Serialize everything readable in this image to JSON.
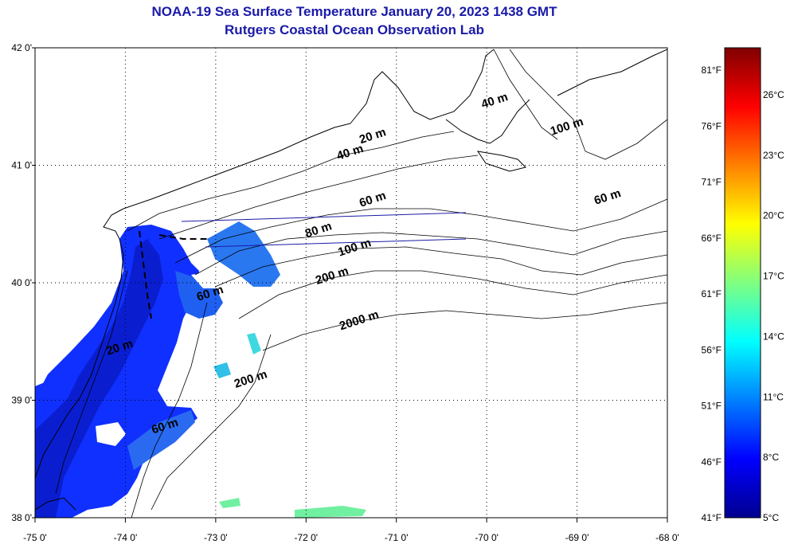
{
  "header": {
    "title": "NOAA-19 Sea Surface Temperature January 20, 2023 1438 GMT",
    "subtitle": "Rutgers Coastal Ocean Observation Lab"
  },
  "map": {
    "lon_min": -75,
    "lon_max": -68,
    "lat_min": 38,
    "lat_max": 42,
    "lat_labels": [
      "42 0'",
      "41 0'",
      "40 0'",
      "39 0'",
      "38 0'"
    ],
    "lon_labels": [
      "-75 0'",
      "-74 0'",
      "-73 0'",
      "-72 0'",
      "-71 0'",
      "-70 0'",
      "-69 0'",
      "-68 0'"
    ],
    "grid": "dotted",
    "contour_labels": [
      {
        "text": "20 m",
        "lon": -71.25,
        "lat": 41.22
      },
      {
        "text": "40 m",
        "lon": -71.5,
        "lat": 41.08
      },
      {
        "text": "40 m",
        "lon": -69.9,
        "lat": 41.52
      },
      {
        "text": "100 m",
        "lon": -69.1,
        "lat": 41.3
      },
      {
        "text": "60 m",
        "lon": -71.25,
        "lat": 40.68
      },
      {
        "text": "60 m",
        "lon": -68.65,
        "lat": 40.7
      },
      {
        "text": "80 m",
        "lon": -71.85,
        "lat": 40.42
      },
      {
        "text": "100 m",
        "lon": -71.45,
        "lat": 40.27
      },
      {
        "text": "200 m",
        "lon": -71.7,
        "lat": 40.03
      },
      {
        "text": "2000 m",
        "lon": -71.4,
        "lat": 39.65
      },
      {
        "text": "60 m",
        "lon": -73.05,
        "lat": 39.88
      },
      {
        "text": "20 m",
        "lon": -74.05,
        "lat": 39.42
      },
      {
        "text": "200 m",
        "lon": -72.6,
        "lat": 39.15
      },
      {
        "text": "60 m",
        "lon": -73.55,
        "lat": 38.75
      }
    ]
  },
  "colorbar": {
    "f_labels": [
      "81°F",
      "76°F",
      "71°F",
      "66°F",
      "61°F",
      "56°F",
      "51°F",
      "46°F",
      "41°F"
    ],
    "c_labels": [
      "26°C",
      "23°C",
      "20°C",
      "17°C",
      "14°C",
      "11°C",
      "8°C",
      "5°C"
    ],
    "f_min": 41,
    "f_max": 83,
    "colors": [
      "#00008f",
      "#0000ff",
      "#0080ff",
      "#00ffff",
      "#80ff80",
      "#ffff00",
      "#ff8000",
      "#ff0000",
      "#800000"
    ]
  }
}
